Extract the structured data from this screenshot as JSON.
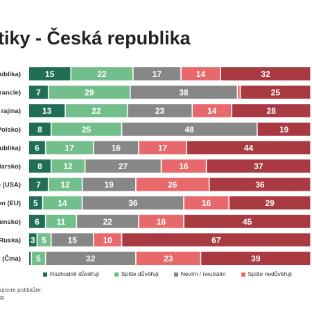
{
  "title": "litiky - Česká republika",
  "chart_data": {
    "type": "bar",
    "stacked": true,
    "orientation": "horizontal",
    "categories": [
      "ublika)",
      "rancie)",
      "rajina)",
      "Polsko)",
      "ublika)",
      "larsko)",
      "o (USA)",
      "en (EU)",
      "ensko)",
      "Ruska)",
      "(Čína)"
    ],
    "series": [
      {
        "name": "Rozhodně důvěřuji",
        "color": "#1f6e55",
        "values": [
          15,
          7,
          13,
          8,
          6,
          8,
          7,
          5,
          6,
          3,
          1
        ]
      },
      {
        "name": "Spíše důvěřuji",
        "color": "#72bf8c",
        "values": [
          22,
          29,
          22,
          25,
          17,
          12,
          12,
          14,
          11,
          5,
          5
        ]
      },
      {
        "name": "Nevím / neutrální",
        "color": "#878787",
        "values": [
          17,
          38,
          23,
          48,
          16,
          27,
          19,
          36,
          22,
          15,
          32
        ]
      },
      {
        "name": "Spíše nedůvěřuji",
        "color": "#e8696b",
        "values": [
          14,
          1,
          14,
          0,
          17,
          16,
          26,
          16,
          16,
          10,
          23
        ]
      },
      {
        "name": "",
        "color": "#a93a42",
        "values": [
          32,
          25,
          28,
          19,
          44,
          37,
          36,
          29,
          45,
          67,
          39
        ]
      }
    ]
  },
  "footnote": [
    "ujícím politikům:",
    "R"
  ]
}
